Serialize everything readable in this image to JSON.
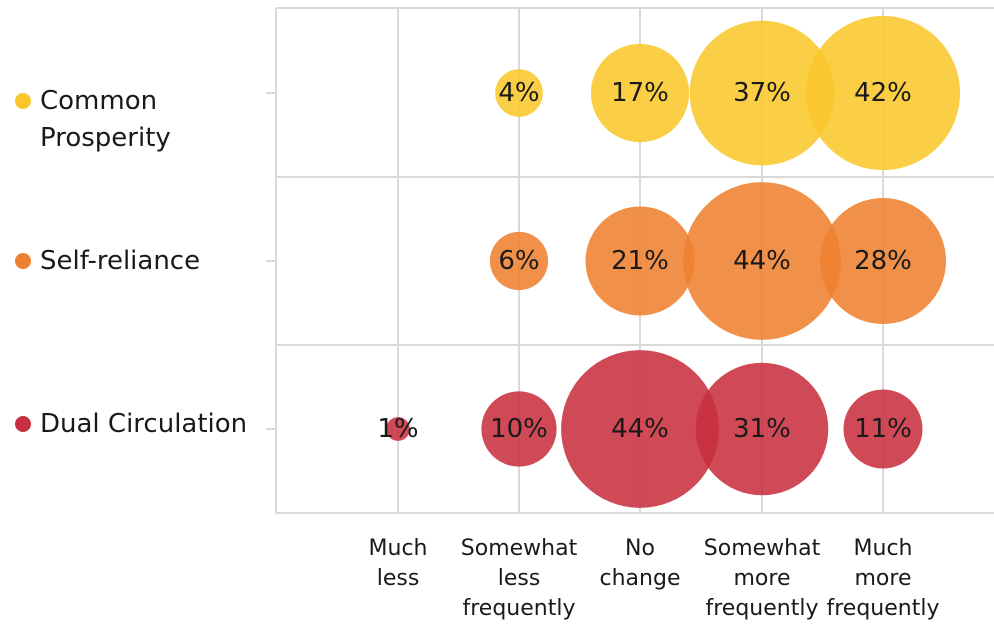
{
  "chart_data": {
    "type": "bubble",
    "title": "",
    "xlabel": "",
    "ylabel": "",
    "grid": true,
    "legend": "left, inline with rows",
    "categories": [
      [
        "Much",
        "less"
      ],
      [
        "Somewhat",
        "less",
        "frequently"
      ],
      [
        "No",
        "change"
      ],
      [
        "Somewhat",
        "more",
        "frequently"
      ],
      [
        "Much",
        "more",
        "frequently"
      ]
    ],
    "series": [
      {
        "name_lines": [
          "Common",
          "Prosperity"
        ],
        "color": "#f9c72b",
        "values": [
          null,
          4,
          17,
          37,
          42
        ],
        "labels": [
          "",
          "4%",
          "17%",
          "37%",
          "42%"
        ]
      },
      {
        "name_lines": [
          "Self-reliance"
        ],
        "color": "#ee8130",
        "values": [
          null,
          6,
          21,
          44,
          28
        ],
        "labels": [
          "",
          "6%",
          "21%",
          "44%",
          "28%"
        ]
      },
      {
        "name_lines": [
          "Dual Circulation"
        ],
        "color": "#c8303f",
        "values": [
          1,
          10,
          44,
          31,
          11
        ],
        "labels": [
          "1%",
          "10%",
          "44%",
          "31%",
          "11%"
        ]
      }
    ]
  }
}
